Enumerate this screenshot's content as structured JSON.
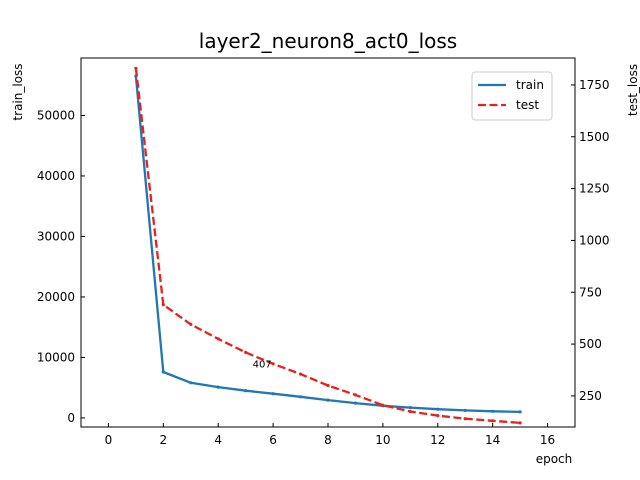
{
  "chart_data": {
    "type": "line",
    "title": "layer2_neuron8_act0_loss",
    "xlabel": "epoch",
    "ylabel_left": "train_loss",
    "ylabel_right": "test_loss",
    "xlim": [
      -1,
      17
    ],
    "ylim_left": [
      -1500,
      59500
    ],
    "ylim_right": [
      100,
      1880
    ],
    "x_ticks": [
      0,
      2,
      4,
      6,
      8,
      10,
      12,
      14,
      16
    ],
    "y_left_ticks": [
      0,
      10000,
      20000,
      30000,
      40000,
      50000
    ],
    "y_right_ticks": [
      250,
      500,
      750,
      1000,
      1250,
      1500,
      1750
    ],
    "grid": false,
    "legend_position": "top-right",
    "x": [
      1,
      2,
      3,
      4,
      5,
      6,
      7,
      8,
      9,
      10,
      11,
      12,
      13,
      14,
      15
    ],
    "series": [
      {
        "name": "train",
        "axis": "left",
        "color": "#1f77b4",
        "style": "solid",
        "values": [
          56500,
          7600,
          5800,
          5100,
          4500,
          4000,
          3500,
          2950,
          2450,
          2000,
          1700,
          1450,
          1250,
          1100,
          1000
        ]
      },
      {
        "name": "test",
        "axis": "right",
        "color": "#e8221b",
        "style": "dashed",
        "values": [
          1830,
          690,
          595,
          525,
          460,
          405,
          355,
          300,
          255,
          205,
          175,
          155,
          140,
          130,
          120
        ]
      }
    ],
    "annotations": [
      {
        "text": "407",
        "x": 5.6,
        "y_right": 407
      }
    ]
  }
}
